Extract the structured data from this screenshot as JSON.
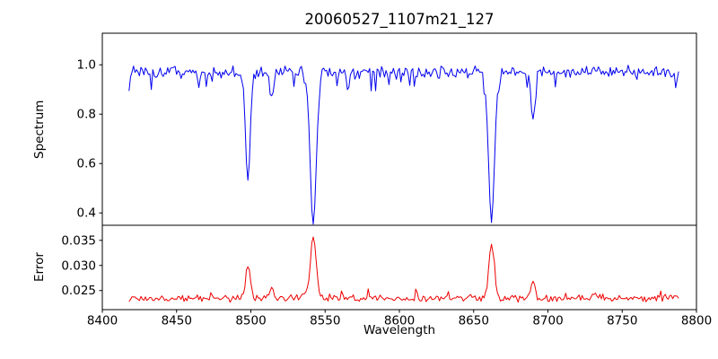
{
  "figure": {
    "background": "#ffffff"
  },
  "chart_data": {
    "type": "line",
    "title": "20060527_1107m21_127",
    "xlabel": "Wavelength",
    "xlim": [
      8400,
      8800
    ],
    "xticks": [
      8400,
      8450,
      8500,
      8550,
      8600,
      8650,
      8700,
      8750,
      8800
    ],
    "x_data_range": [
      8418,
      8788
    ],
    "x_step": 1,
    "grid": false,
    "legend": null,
    "subplots": [
      {
        "name": "spectrum",
        "ylabel": "Spectrum",
        "ylim": [
          0.35,
          1.128
        ],
        "yticks": [
          0.4,
          0.6,
          0.8,
          1.0
        ],
        "ytick_labels": [
          "0.4",
          "0.6",
          "0.8",
          "1.0"
        ],
        "line_color": "#0000ee",
        "continuum_level": 0.97,
        "noise_amplitude": 0.03,
        "absorption_lines": [
          {
            "center": 8498,
            "min_value": 0.53,
            "depth": 0.45,
            "sigma": 1.6
          },
          {
            "center": 8514,
            "min_value": 0.88,
            "depth": 0.095,
            "sigma": 1.4
          },
          {
            "center": 8542,
            "min_value": 0.36,
            "depth": 0.63,
            "sigma": 2.1
          },
          {
            "center": 8662,
            "min_value": 0.37,
            "depth": 0.62,
            "sigma": 2.0
          },
          {
            "center": 8690,
            "min_value": 0.78,
            "depth": 0.2,
            "sigma": 1.4
          }
        ]
      },
      {
        "name": "error",
        "ylabel": "Error",
        "ylim": [
          0.0212,
          0.038
        ],
        "yticks": [
          0.025,
          0.03,
          0.035
        ],
        "ytick_labels": [
          "0.025",
          "0.030",
          "0.035"
        ],
        "line_color": "#ee0000",
        "baseline_level": 0.0235,
        "noise_amplitude": 0.0009,
        "peaks": [
          {
            "center": 8498,
            "peak_value": 0.0305,
            "amplitude": 0.0068,
            "sigma": 1.6
          },
          {
            "center": 8514,
            "peak_value": 0.0255,
            "amplitude": 0.0018,
            "sigma": 1.4
          },
          {
            "center": 8542,
            "peak_value": 0.036,
            "amplitude": 0.0125,
            "sigma": 1.9
          },
          {
            "center": 8662,
            "peak_value": 0.034,
            "amplitude": 0.0105,
            "sigma": 1.8
          },
          {
            "center": 8690,
            "peak_value": 0.027,
            "amplitude": 0.0033,
            "sigma": 1.4
          }
        ]
      }
    ]
  }
}
